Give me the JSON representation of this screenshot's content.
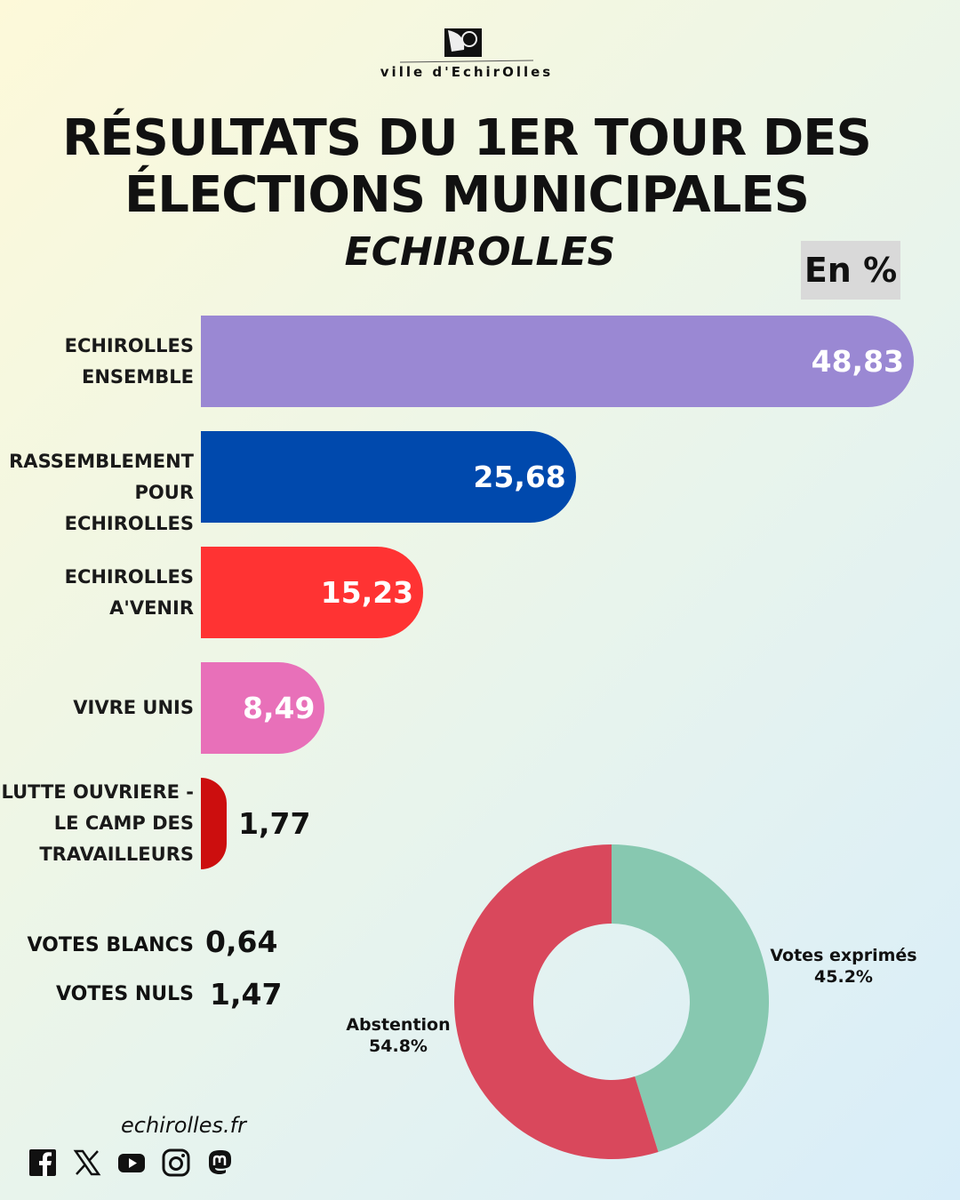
{
  "logo_text": "ville d'Echirolles",
  "title_line1": "RÉSULTATS DU 1ER TOUR DES",
  "title_line2": "ÉLECTIONS MUNICIPALES",
  "subtitle": "ECHIROLLES",
  "unit": "En %",
  "chart_data": [
    {
      "type": "bar",
      "orientation": "horizontal",
      "categories": [
        "ECHIROLLES ENSEMBLE",
        "RASSEMBLEMENT POUR ECHIROLLES",
        "ECHIROLLES A'VENIR",
        "VIVRE UNIS",
        "LUTTE OUVRIERE - LE CAMP DES TRAVAILLEURS"
      ],
      "label_lines": [
        [
          "ECHIROLLES",
          "ENSEMBLE"
        ],
        [
          "RASSEMBLEMENT",
          "POUR ECHIROLLES"
        ],
        [
          "ECHIROLLES",
          "A'VENIR"
        ],
        [
          "VIVRE UNIS"
        ],
        [
          "LUTTE OUVRIERE -",
          "LE CAMP DES",
          "TRAVAILLEURS"
        ]
      ],
      "values": [
        48.83,
        25.68,
        15.23,
        8.49,
        1.77
      ],
      "value_labels": [
        "48,83",
        "25,68",
        "15,23",
        "8,49",
        "1,77"
      ],
      "colors": [
        "#9a88d3",
        "#0049ad",
        "#ff3333",
        "#e870b9",
        "#cc0e0e"
      ],
      "unit": "%"
    },
    {
      "type": "pie",
      "style": "donut",
      "slices": [
        {
          "label": "Votes exprimés",
          "value": 45.2,
          "value_label": "45.2%",
          "color": "#87c8b0"
        },
        {
          "label": "Abstention",
          "value": 54.8,
          "value_label": "54.8%",
          "color": "#d9485c"
        }
      ]
    }
  ],
  "extras": [
    {
      "label": "VOTES BLANCS",
      "value": "0,64"
    },
    {
      "label": "VOTES NULS",
      "value": "1,47"
    }
  ],
  "footer": {
    "website": "echirolles.fr",
    "socials": [
      "facebook-icon",
      "x-icon",
      "youtube-icon",
      "instagram-icon",
      "mastodon-icon"
    ]
  }
}
